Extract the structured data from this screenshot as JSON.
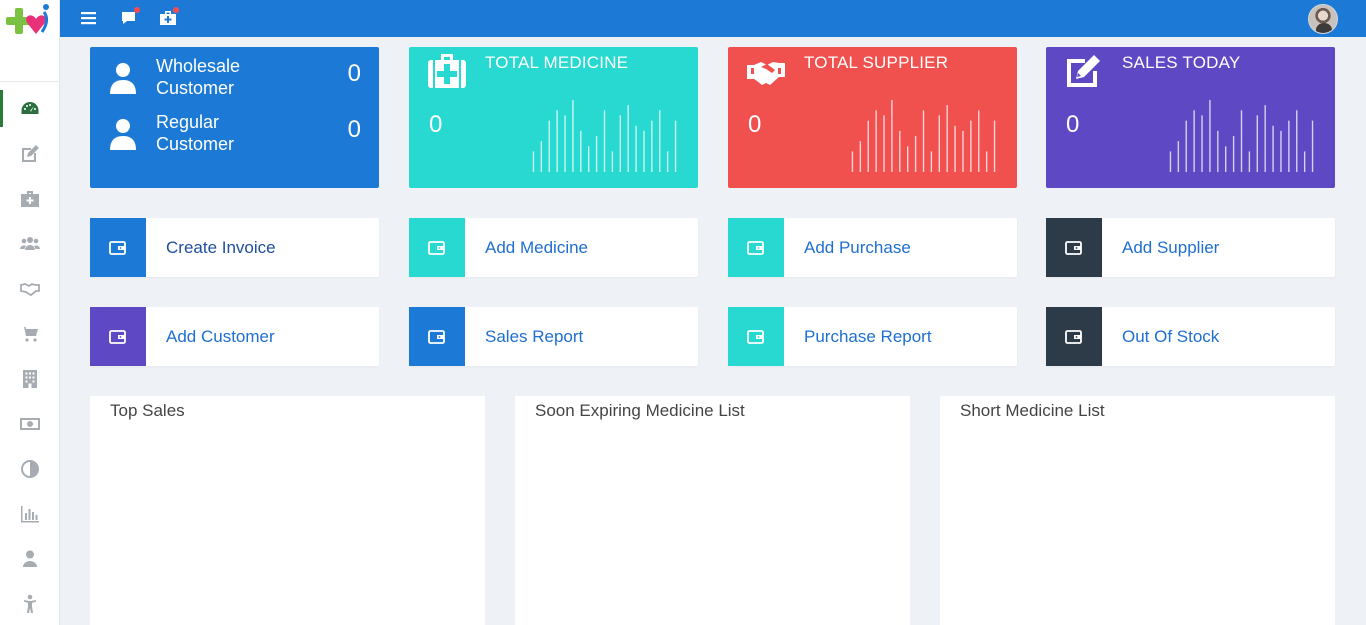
{
  "sidebar": {
    "items": [
      {
        "name": "dashboard",
        "icon": "dashboard-icon",
        "active": true
      },
      {
        "name": "invoice",
        "icon": "edit-icon"
      },
      {
        "name": "medicine",
        "icon": "medkit-icon"
      },
      {
        "name": "customers",
        "icon": "users-icon"
      },
      {
        "name": "suppliers",
        "icon": "handshake-icon"
      },
      {
        "name": "purchase",
        "icon": "cart-icon"
      },
      {
        "name": "stock",
        "icon": "building-icon"
      },
      {
        "name": "payments",
        "icon": "money-icon"
      },
      {
        "name": "reports",
        "icon": "half-circle-icon"
      },
      {
        "name": "analytics",
        "icon": "bar-chart-icon"
      },
      {
        "name": "users",
        "icon": "user-icon"
      },
      {
        "name": "people",
        "icon": "person-icon"
      }
    ]
  },
  "colors": {
    "topbar": "#1c7ad6",
    "blue": "#1c7ad6",
    "teal": "#28d9d2",
    "red": "#f0514f",
    "purple": "#5f48c4",
    "dark": "#2d3a47"
  },
  "customers": {
    "wholesale_label": "Wholesale Customer",
    "wholesale_value": "0",
    "regular_label": "Regular Customer",
    "regular_value": "0"
  },
  "stats": {
    "medicine": {
      "title": "TOTAL MEDICINE",
      "value": "0",
      "spark": [
        20,
        30,
        50,
        60,
        55,
        70,
        40,
        25,
        35,
        60,
        20,
        55,
        65,
        45,
        40,
        50,
        60,
        20,
        50
      ]
    },
    "supplier": {
      "title": "TOTAL SUPPLIER",
      "value": "0",
      "spark": [
        20,
        30,
        50,
        60,
        55,
        70,
        40,
        25,
        35,
        60,
        20,
        55,
        65,
        45,
        40,
        50,
        60,
        20,
        50
      ]
    },
    "sales": {
      "title": "SALES TODAY",
      "value": "0",
      "spark": [
        20,
        30,
        50,
        60,
        55,
        70,
        40,
        25,
        35,
        60,
        20,
        55,
        65,
        45,
        40,
        50,
        60,
        20,
        50
      ]
    }
  },
  "tiles": [
    {
      "label": "Create Invoice",
      "color": "#1c7ad6",
      "label_color": "#1f4fa0"
    },
    {
      "label": "Add Medicine",
      "color": "#28d9d2",
      "label_color": "#1f6fd0"
    },
    {
      "label": "Add Purchase",
      "color": "#28d9d2",
      "label_color": "#1f6fd0"
    },
    {
      "label": "Add Supplier",
      "color": "#2d3a47",
      "label_color": "#1f6fd0"
    },
    {
      "label": "Add Customer",
      "color": "#5f48c4",
      "label_color": "#1f6fd0"
    },
    {
      "label": "Sales Report",
      "color": "#1c7ad6",
      "label_color": "#1f6fd0"
    },
    {
      "label": "Purchase Report",
      "color": "#28d9d2",
      "label_color": "#1f6fd0"
    },
    {
      "label": "Out Of Stock",
      "color": "#2d3a47",
      "label_color": "#1f6fd0"
    }
  ],
  "panels": {
    "top_sales": "Top Sales",
    "expiring": "Soon Expiring Medicine List",
    "short": "Short Medicine List"
  }
}
